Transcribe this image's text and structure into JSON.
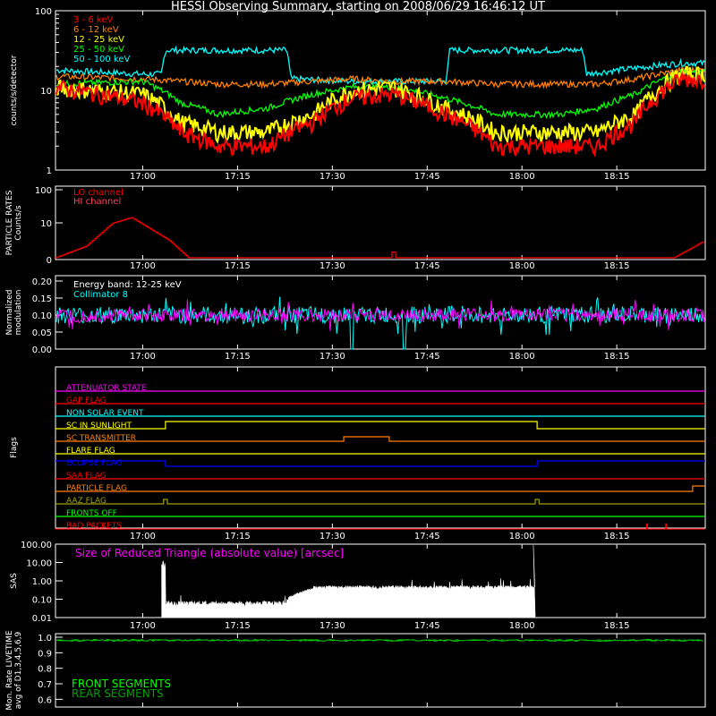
{
  "title": "HESSI Observing Summary, starting on 2008/06/29 16:46:12 UT",
  "colors": {
    "background": "#000000",
    "axis": "#ffffff",
    "red": "#ff0000",
    "orange": "#ff8000",
    "yellow": "#ffff00",
    "green": "#00ff00",
    "cyan": "#00ffff",
    "magenta": "#ff00ff",
    "blue": "#0000ff",
    "darkgreen": "#00a000",
    "olive": "#a0a000",
    "pink": "#ff4060"
  },
  "time_axis": {
    "ticks": [
      "17:00",
      "17:15",
      "17:30",
      "17:45",
      "18:00",
      "18:15"
    ]
  },
  "chart_data": [
    {
      "id": "count_rates",
      "type": "line",
      "ylabel": "counts/s/detector",
      "yscale": "log",
      "ylim": [
        1,
        100
      ],
      "yticks": [
        "1",
        "10",
        "100"
      ],
      "legend_placement": "top-left",
      "series": [
        {
          "name": "3 - 6 keV",
          "color": "#ff0000",
          "x_min": [
            16.77,
            17.0,
            17.1,
            17.2,
            17.33,
            17.45,
            17.55,
            17.66,
            17.8,
            17.93,
            18.1,
            18.2,
            18.3,
            18.42
          ],
          "values": [
            11,
            7,
            3,
            2,
            2,
            4,
            8,
            9,
            5,
            2,
            2,
            2,
            4,
            14
          ]
        },
        {
          "name": "6 - 12 keV",
          "color": "#ff8000",
          "x_min": [
            16.77,
            17.0,
            17.1,
            17.2,
            17.33,
            17.45,
            17.55,
            17.66,
            17.8,
            17.93,
            18.1,
            18.2,
            18.3,
            18.42
          ],
          "values": [
            15,
            14,
            13,
            12,
            12,
            13,
            14,
            13,
            13,
            12,
            12,
            12,
            14,
            18
          ]
        },
        {
          "name": "12 - 25 keV",
          "color": "#ffff00",
          "x_min": [
            16.77,
            17.0,
            17.1,
            17.2,
            17.33,
            17.45,
            17.55,
            17.66,
            17.8,
            17.93,
            18.1,
            18.2,
            18.3,
            18.42
          ],
          "values": [
            11,
            9,
            4,
            3,
            3,
            5,
            10,
            11,
            6,
            3,
            3,
            3,
            5,
            16
          ]
        },
        {
          "name": "25 - 50 keV",
          "color": "#00ff00",
          "x_min": [
            16.77,
            17.0,
            17.1,
            17.2,
            17.33,
            17.45,
            17.55,
            17.66,
            17.8,
            17.93,
            18.1,
            18.2,
            18.3,
            18.42
          ],
          "values": [
            12,
            13,
            7,
            5,
            6,
            9,
            11,
            11,
            8,
            5,
            5,
            6,
            9,
            17
          ]
        },
        {
          "name": "50 - 100 keV",
          "color": "#00ffff",
          "x_min": [
            16.77,
            17.0,
            17.05,
            17.06,
            17.2,
            17.38,
            17.39,
            17.55,
            17.8,
            17.81,
            18.0,
            18.16,
            18.17,
            18.42
          ],
          "values": [
            18,
            16,
            16,
            32,
            32,
            32,
            14,
            13,
            13,
            32,
            32,
            32,
            16,
            22
          ]
        }
      ]
    },
    {
      "id": "particle_rates",
      "type": "line",
      "ylabel": "PARTICLE RATES Counts/s",
      "ylim": [
        0,
        100
      ],
      "yticks": [
        "0",
        "10",
        "100"
      ],
      "legend_placement": "top-left",
      "series": [
        {
          "name": "LO channel",
          "color": "#ff0000",
          "x_min": [
            16.77,
            16.85,
            16.92,
            16.97,
            17.02,
            17.07,
            17.12,
            17.5
          ],
          "values": [
            0,
            2,
            6,
            7,
            5,
            3,
            0,
            0
          ]
        },
        {
          "name": "HI channel",
          "color": "#ff4060",
          "x_min": [
            16.77,
            17.5
          ],
          "values": [
            0,
            0
          ]
        }
      ]
    },
    {
      "id": "modulation",
      "type": "line",
      "ylabel": "Normalized modulation",
      "ylim": [
        0,
        0.2
      ],
      "yticks": [
        "0.00",
        "0.05",
        "0.10",
        "0.15",
        "0.20"
      ],
      "annotation": "Energy band: 12-25 keV",
      "series": [
        {
          "name": "Collimator 8",
          "color": "#00ffff",
          "mean": 0.1,
          "spread": 0.05
        },
        {
          "name": "",
          "color": "#ff00ff",
          "mean": 0.1,
          "spread": 0.04
        }
      ]
    },
    {
      "id": "sas",
      "type": "area",
      "ylabel": "SAS",
      "yscale": "log",
      "ylim": [
        0.01,
        100
      ],
      "yticks": [
        "100.00",
        "10.00",
        "1.00",
        "0.10",
        "0.01"
      ],
      "annotation": "Size of Reduced Triangle (absolute value) [arcsec]",
      "x_min": [
        17.05,
        17.4,
        18.03
      ],
      "values": [
        0.05,
        0.4,
        0.5
      ]
    },
    {
      "id": "livetime",
      "type": "line",
      "ylabel": "Mon. Rate LIVETIME avg of D1,3,4,5,6,9",
      "ylim": [
        0.55,
        1.0
      ],
      "yticks": [
        "0.6",
        "0.7",
        "0.8",
        "0.9",
        "1.0"
      ],
      "series": [
        {
          "name": "FRONT SEGMENTS",
          "color": "#00ff00",
          "values": [
            0.98
          ]
        },
        {
          "name": "REAR SEGMENTS",
          "color": "#00a000",
          "values": [
            0.98
          ]
        }
      ]
    }
  ],
  "flags": {
    "ylabel": "Flags",
    "items": [
      {
        "name": "ATTENUATOR STATE",
        "color": "#ff00ff"
      },
      {
        "name": "GAP FLAG",
        "color": "#ff0000"
      },
      {
        "name": "NON SOLAR EVENT",
        "color": "#00ffff"
      },
      {
        "name": "SC IN SUNLIGHT",
        "color": "#ffff00"
      },
      {
        "name": "SC TRANSMITTER",
        "color": "#ff8000"
      },
      {
        "name": "FLARE FLAG",
        "color": "#ffff00"
      },
      {
        "name": "ECLIPSE FLAG",
        "color": "#0000ff"
      },
      {
        "name": "SAA FLAG",
        "color": "#ff0000"
      },
      {
        "name": "PARTICLE FLAG",
        "color": "#ff8000"
      },
      {
        "name": "AAZ FLAG",
        "color": "#a0a000"
      },
      {
        "name": "FRONTS OFF",
        "color": "#00ff00"
      },
      {
        "name": "BAD PACKETS",
        "color": "#ff0000"
      }
    ]
  }
}
